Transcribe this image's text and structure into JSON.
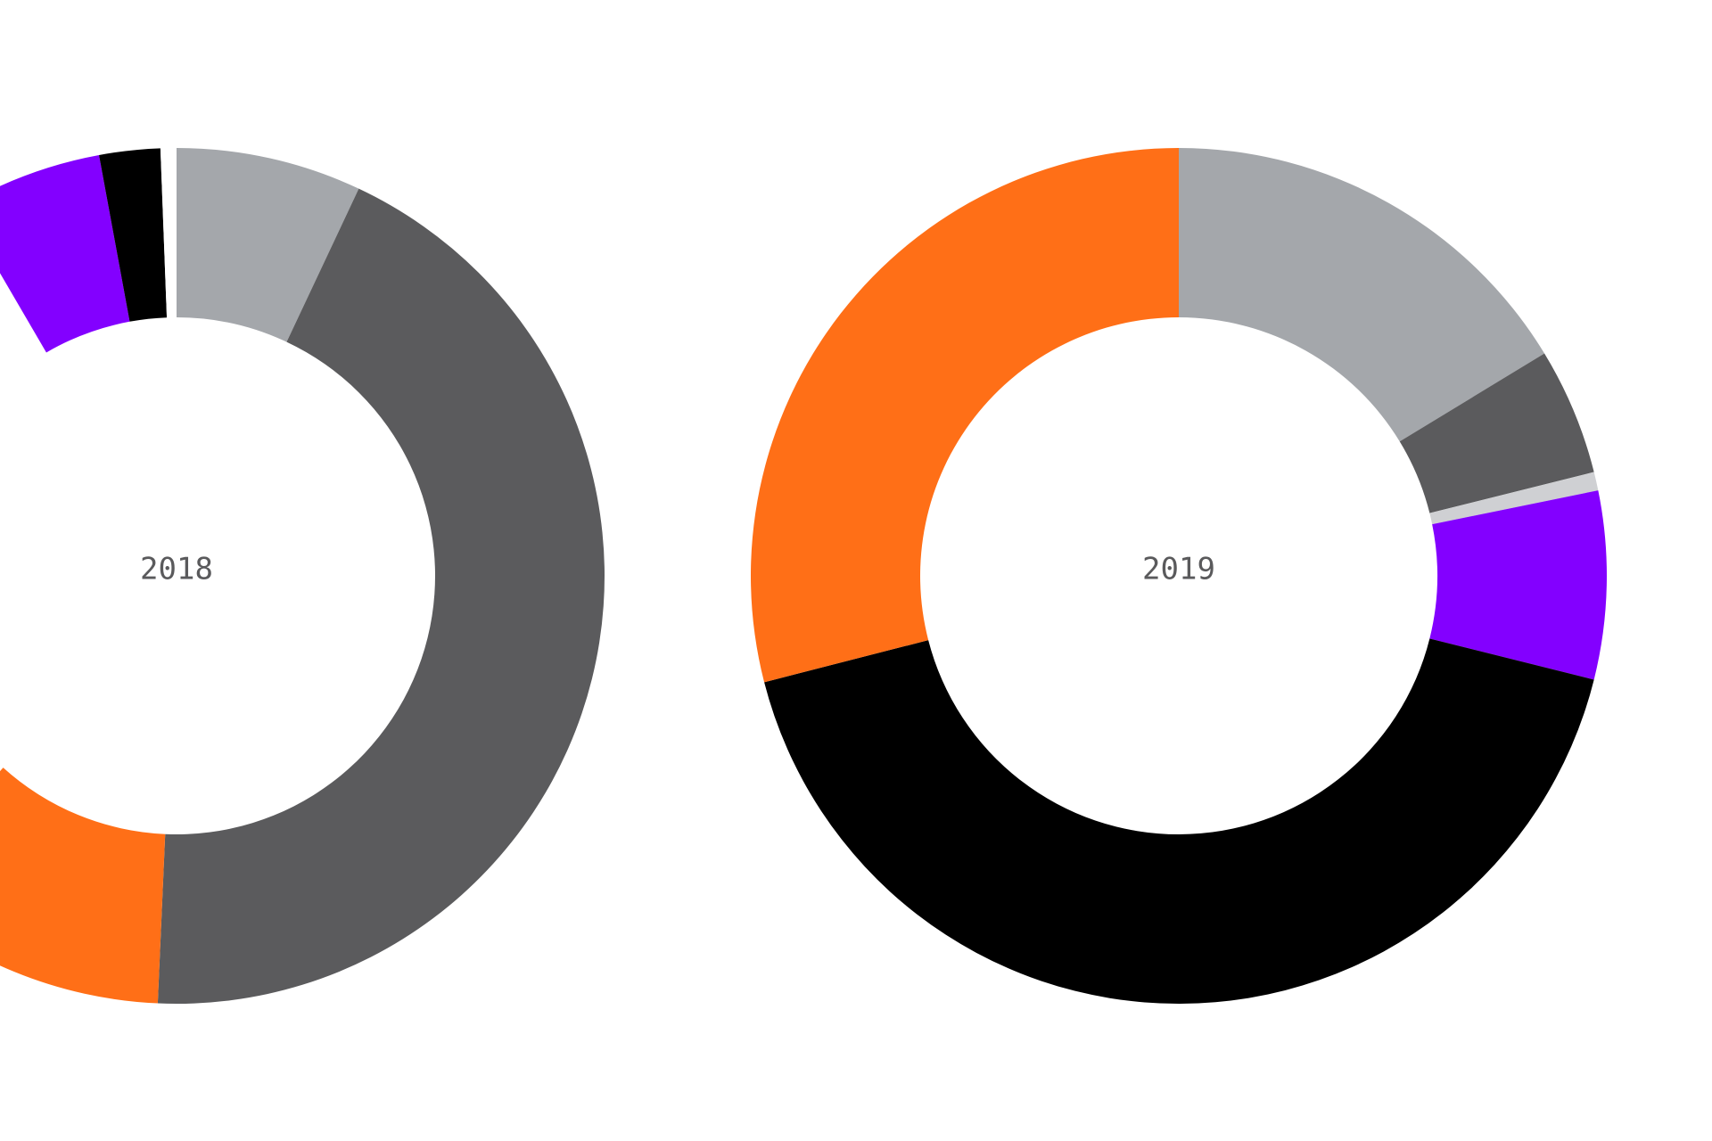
{
  "chart_data": [
    {
      "type": "pie",
      "variant": "donut",
      "center_label": "2018",
      "start_angle_deg": 0,
      "slices": [
        {
          "value": 7.0,
          "color": "#a4a7ab"
        },
        {
          "value": 43.7,
          "color": "#5b5b5d"
        },
        {
          "value": 11.0,
          "color": "#ff6f17"
        },
        {
          "value": 29.9,
          "color": "#ffffff"
        },
        {
          "value": 5.5,
          "color": "#8300ff"
        },
        {
          "value": 2.3,
          "color": "#000000"
        },
        {
          "value": 0.6,
          "color": "#ffffff"
        }
      ]
    },
    {
      "type": "pie",
      "variant": "donut",
      "center_label": "2019",
      "start_angle_deg": 0,
      "slices": [
        {
          "value": 16.3,
          "color": "#a4a7ab"
        },
        {
          "value": 4.8,
          "color": "#5b5b5d"
        },
        {
          "value": 0.7,
          "color": "#cfd0d3"
        },
        {
          "value": 7.1,
          "color": "#8300ff"
        },
        {
          "value": 42.1,
          "color": "#000000"
        },
        {
          "value": 29.0,
          "color": "#ff6f17"
        }
      ]
    }
  ]
}
